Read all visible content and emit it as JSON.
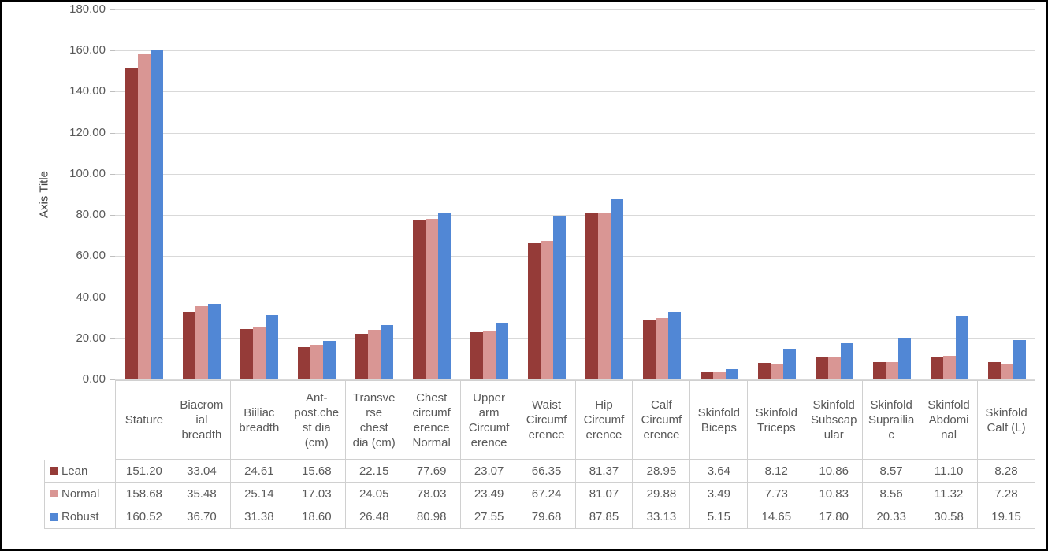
{
  "chart_data": {
    "type": "bar",
    "title": "",
    "y_axis_title": "Axis Title",
    "ylim": [
      0,
      180
    ],
    "ytick_step": 20,
    "ytick_decimals": 2,
    "grid": true,
    "legend_position": "data-table-left",
    "categories": [
      "Stature",
      "Biacromial breadth",
      "Biiliac breadth",
      "Ant-post.chest dia (cm)",
      "Transverse chest dia (cm)",
      "Chest circumference Normal",
      "Upper arm Circumference",
      "Waist Circumference",
      "Hip Circumference",
      "Calf Circumference",
      "Skinfold Biceps",
      "Skinfold Triceps",
      "Skinfold Subscapular",
      "Skinfold Suprailiac",
      "Skinfold Abdominal",
      "Skinfold Calf (L)"
    ],
    "category_display": [
      "Stature",
      "Biacrom\nial\nbreadth",
      "Biiliac\nbreadth",
      "Ant-\npost.che\nst dia\n(cm)",
      "Transve\nrse\nchest\ndia (cm)",
      "Chest\ncircumf\nerence\nNormal",
      "Upper\narm\nCircumf\nerence",
      "Waist\nCircumf\nerence",
      "Hip\nCircumf\nerence",
      "Calf\nCircumf\nerence",
      "Skinfold\nBiceps",
      "Skinfold\nTriceps",
      "Skinfold\nSubscap\nular",
      "Skinfold\nSuprailia\nc",
      "Skinfold\nAbdomi\nnal",
      "Skinfold\nCalf (L)"
    ],
    "series": [
      {
        "name": "Lean",
        "color": "#953b38",
        "values": [
          151.2,
          33.04,
          24.61,
          15.68,
          22.15,
          77.69,
          23.07,
          66.35,
          81.37,
          28.95,
          3.64,
          8.12,
          10.86,
          8.57,
          11.1,
          8.28
        ]
      },
      {
        "name": "Normal",
        "color": "#d99694",
        "values": [
          158.68,
          35.48,
          25.14,
          17.03,
          24.05,
          78.03,
          23.49,
          67.24,
          81.07,
          29.88,
          3.49,
          7.73,
          10.83,
          8.56,
          11.32,
          7.28
        ]
      },
      {
        "name": "Robust",
        "color": "#5187d5",
        "values": [
          160.52,
          36.7,
          31.38,
          18.6,
          26.48,
          80.98,
          27.55,
          79.68,
          87.85,
          33.13,
          5.15,
          14.65,
          17.8,
          20.33,
          30.58,
          19.15
        ]
      }
    ]
  },
  "colors": {
    "gridline": "#d9d9d9",
    "table_border": "#d0d0d0",
    "text": "#595959"
  }
}
